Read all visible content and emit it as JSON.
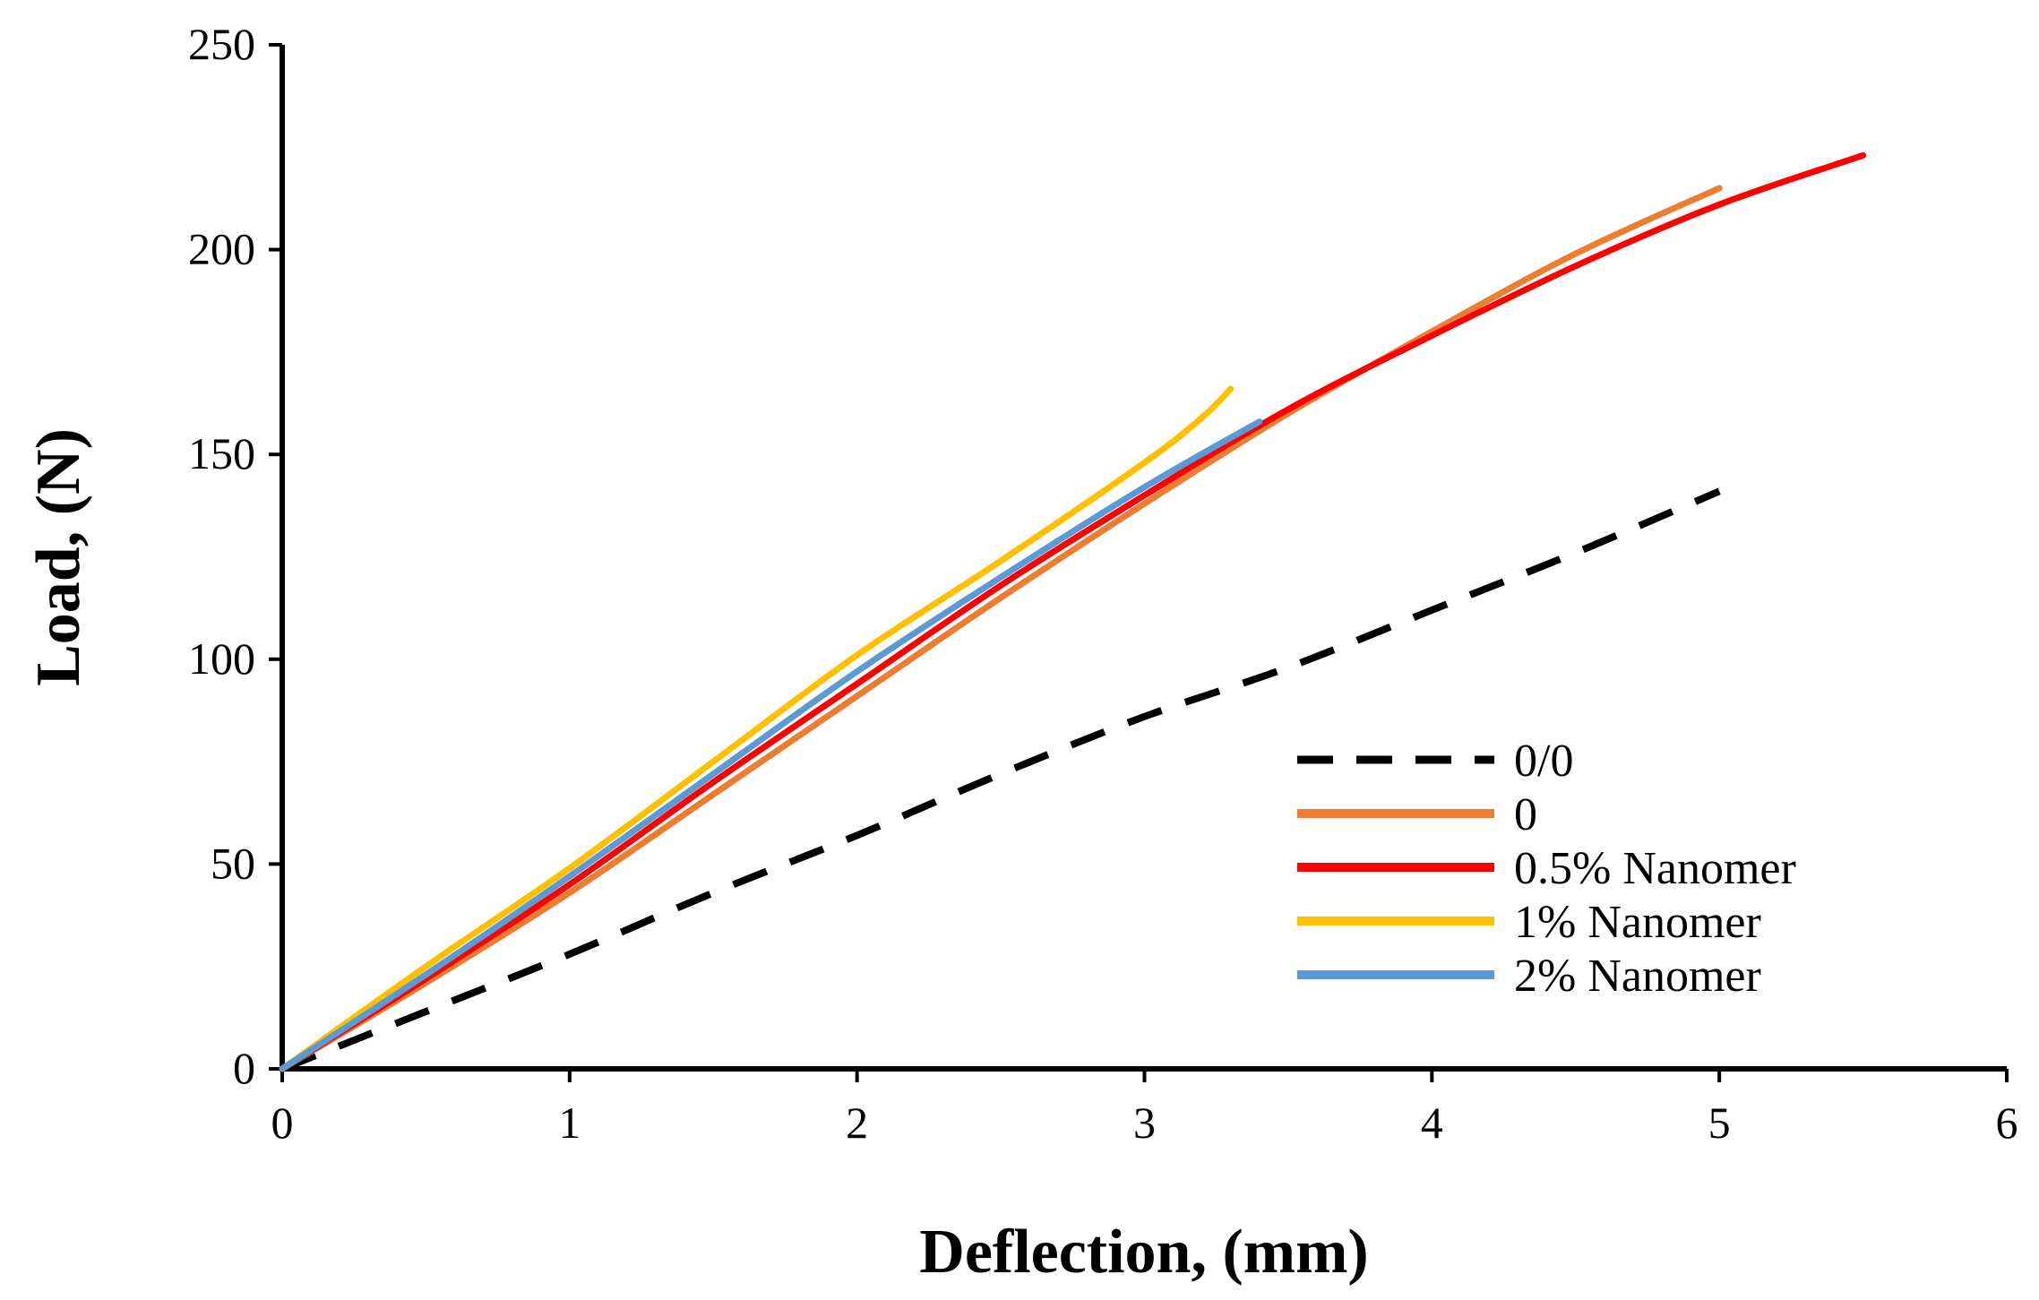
{
  "chart_data": {
    "type": "line",
    "title": "",
    "xlabel": "Deflection, (mm)",
    "ylabel": "Load, (N)",
    "xlim": [
      0,
      6
    ],
    "ylim": [
      0,
      250
    ],
    "xticks": [
      0,
      1,
      2,
      3,
      4,
      5,
      6
    ],
    "yticks": [
      0,
      50,
      100,
      150,
      200,
      250
    ],
    "grid": false,
    "legend_position": "bottom-right",
    "series": [
      {
        "name": "0/0",
        "color": "#000000",
        "dashed": true,
        "x": [
          0,
          0.5,
          1,
          1.5,
          2,
          2.5,
          3,
          3.5,
          4,
          4.5,
          5
        ],
        "y": [
          0,
          14,
          28,
          43,
          57,
          72,
          86,
          98,
          112,
          126,
          141
        ]
      },
      {
        "name": "0",
        "color": "#ED7D31",
        "dashed": false,
        "x": [
          0,
          0.5,
          1,
          1.5,
          2,
          2.5,
          3,
          3.5,
          4,
          4.5,
          5
        ],
        "y": [
          0,
          21,
          43,
          67,
          91,
          115,
          138,
          160,
          180,
          199,
          215
        ]
      },
      {
        "name": "0.5% Nanomer",
        "color": "#FF0000",
        "dashed": false,
        "x": [
          0,
          0.5,
          1,
          1.5,
          2,
          2.5,
          3,
          3.5,
          4,
          4.5,
          5,
          5.5
        ],
        "y": [
          0,
          22,
          45,
          70,
          94,
          118,
          140,
          161,
          179,
          196,
          211,
          223
        ]
      },
      {
        "name": "1% Nanomer",
        "color": "#FFC000",
        "dashed": false,
        "x": [
          0,
          0.5,
          1,
          1.5,
          2,
          2.5,
          3,
          3.2,
          3.3
        ],
        "y": [
          0,
          25,
          49,
          75,
          101,
          124,
          148,
          159,
          166
        ]
      },
      {
        "name": "2% Nanomer",
        "color": "#5B9BD5",
        "dashed": false,
        "x": [
          0,
          0.5,
          1,
          1.5,
          2,
          2.5,
          3,
          3.4
        ],
        "y": [
          0,
          23,
          47,
          72,
          97,
          120,
          142,
          158
        ]
      }
    ]
  }
}
